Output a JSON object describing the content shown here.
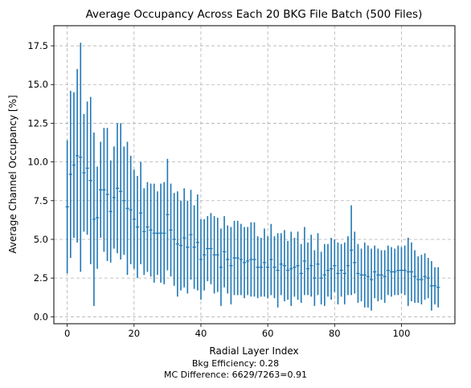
{
  "chart_data": {
    "type": "errorbar",
    "title": "Average Occupancy Across Each 20 BKG File Batch (500 Files)",
    "xlabel": "Radial Layer Index",
    "ylabel": "Average Channel Occupancy [%]",
    "xlim": [
      -4,
      116
    ],
    "ylim": [
      -0.45,
      18.8
    ],
    "xticks": [
      0,
      20,
      40,
      60,
      80,
      100
    ],
    "xtick_labels": [
      "0",
      "20",
      "40",
      "60",
      "80",
      "100"
    ],
    "yticks": [
      0,
      2.5,
      5,
      7.5,
      10,
      12.5,
      15,
      17.5
    ],
    "ytick_labels": [
      "0.0",
      "2.5",
      "5.0",
      "7.5",
      "10.0",
      "12.5",
      "15.0",
      "17.5"
    ],
    "grid": true,
    "color": "#1f77b4",
    "series": [
      {
        "x": [
          0,
          1,
          2,
          3,
          4,
          5,
          6,
          7,
          8,
          9,
          10,
          11,
          12,
          13,
          14,
          15,
          16,
          17,
          18,
          19,
          20,
          21,
          22,
          23,
          24,
          25,
          26,
          27,
          28,
          29,
          30,
          31,
          32,
          33,
          34,
          35,
          36,
          37,
          38,
          39,
          40,
          41,
          42,
          43,
          44,
          45,
          46,
          47,
          48,
          49,
          50,
          51,
          52,
          53,
          54,
          55,
          56,
          57,
          58,
          59,
          60,
          61,
          62,
          63,
          64,
          65,
          66,
          67,
          68,
          69,
          70,
          71,
          72,
          73,
          74,
          75,
          76,
          77,
          78,
          79,
          80,
          81,
          82,
          83,
          84,
          85,
          86,
          87,
          88,
          89,
          90,
          91,
          92,
          93,
          94,
          95,
          96,
          97,
          98,
          99,
          100,
          101,
          102,
          103,
          104,
          105,
          106,
          107,
          108,
          109,
          110,
          111
        ],
        "y": [
          7.1,
          9.2,
          9.8,
          10.4,
          10.3,
          9.3,
          9.6,
          8.8,
          6.3,
          6.4,
          8.2,
          8.2,
          7.9,
          6.8,
          7.7,
          8.3,
          8.1,
          7.5,
          7.0,
          6.9,
          6.3,
          5.8,
          6.7,
          5.5,
          5.8,
          5.6,
          5.4,
          5.4,
          5.4,
          5.4,
          6.6,
          5.6,
          5.0,
          4.7,
          4.6,
          5.1,
          4.5,
          5.3,
          4.5,
          4.8,
          3.7,
          4.0,
          4.4,
          4.4,
          4.0,
          4.0,
          3.2,
          4.2,
          3.7,
          3.3,
          3.8,
          3.8,
          3.7,
          3.5,
          3.6,
          3.7,
          3.7,
          3.2,
          3.2,
          3.5,
          3.2,
          3.7,
          3.2,
          3.0,
          3.4,
          3.3,
          3.0,
          3.1,
          3.2,
          3.3,
          2.8,
          3.6,
          3.1,
          3.3,
          2.5,
          3.4,
          2.5,
          2.7,
          3.0,
          3.1,
          3.3,
          2.8,
          3.0,
          2.8,
          3.3,
          4.3,
          3.5,
          2.8,
          2.7,
          2.7,
          2.6,
          2.4,
          2.9,
          2.7,
          2.7,
          2.6,
          3.0,
          2.9,
          2.9,
          3.0,
          3.0,
          3.0,
          2.9,
          2.9,
          2.6,
          2.4,
          2.4,
          2.6,
          2.5,
          2.0,
          2.0,
          1.9
        ],
        "yerr": [
          4.3,
          5.4,
          4.7,
          5.6,
          7.4,
          3.8,
          4.3,
          5.4,
          5.6,
          3.3,
          3.1,
          4.0,
          4.3,
          3.3,
          3.3,
          4.2,
          4.4,
          3.5,
          4.3,
          3.5,
          3.2,
          3.3,
          3.3,
          2.8,
          2.9,
          3.0,
          3.2,
          2.7,
          3.2,
          3.3,
          3.6,
          3.0,
          3.0,
          3.4,
          2.9,
          3.2,
          3.0,
          2.9,
          2.7,
          3.1,
          2.6,
          2.3,
          2.1,
          2.3,
          2.5,
          2.4,
          2.5,
          2.3,
          2.2,
          2.5,
          2.4,
          2.4,
          2.3,
          2.3,
          2.2,
          2.4,
          2.4,
          2.0,
          1.9,
          2.2,
          2.0,
          2.3,
          2.0,
          2.4,
          2.0,
          2.3,
          1.9,
          2.4,
          1.9,
          2.2,
          1.9,
          2.2,
          1.7,
          2.0,
          1.8,
          2.0,
          1.7,
          2.0,
          1.7,
          2.0,
          1.7,
          2.0,
          1.7,
          2.0,
          1.9,
          2.9,
          2.0,
          1.9,
          1.7,
          2.1,
          2.0,
          2.0,
          1.7,
          1.7,
          1.6,
          1.7,
          1.6,
          1.6,
          1.5,
          1.6,
          1.5,
          1.6,
          2.2,
          1.9,
          1.7,
          1.5,
          1.6,
          1.5,
          1.3,
          1.6,
          1.2,
          1.3
        ]
      }
    ]
  },
  "captions": {
    "bkg_efficiency": "Bkg Efficiency: 0.28",
    "mc_difference": "MC Difference: 6629/7263=0.91"
  }
}
